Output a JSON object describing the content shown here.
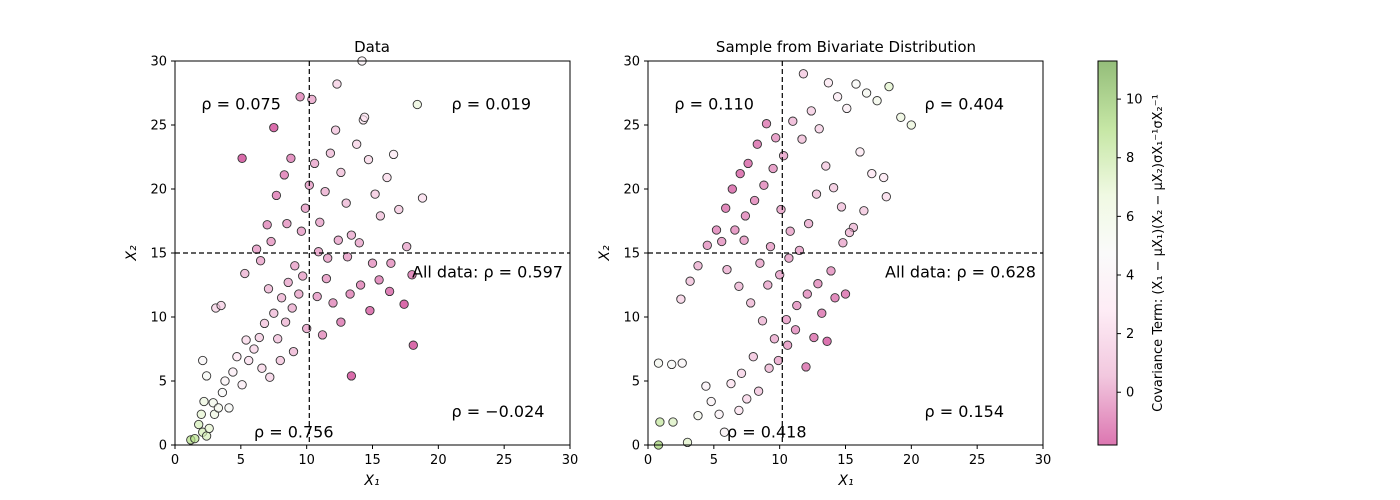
{
  "chart_data": [
    {
      "type": "scatter",
      "title": "Data",
      "xlabel": "X₁",
      "ylabel": "X₂",
      "xlim": [
        0,
        30
      ],
      "ylim": [
        0,
        30
      ],
      "xticks": [
        "0",
        "5",
        "10",
        "15",
        "20",
        "25",
        "30"
      ],
      "yticks": [
        "0",
        "5",
        "10",
        "15",
        "20",
        "25",
        "30"
      ],
      "grid": false,
      "mean_lines": {
        "x": 10.2,
        "y": 15.0
      },
      "annotations": [
        {
          "text": "ρ = 0.075",
          "x": 2.0,
          "y": 26.2
        },
        {
          "text": "ρ = 0.019",
          "x": 21.0,
          "y": 26.2
        },
        {
          "text": "All data: ρ = 0.597",
          "x": 18.0,
          "y": 13.1
        },
        {
          "text": "ρ = −0.024",
          "x": 21.0,
          "y": 2.2
        },
        {
          "text": "ρ = 0.756",
          "x": 6.0,
          "y": 0.6
        }
      ],
      "quadrant_correlations": {
        "upper_left": 0.075,
        "upper_right": 0.019,
        "lower_left": 0.756,
        "lower_right": -0.024,
        "all": 0.597
      },
      "series": [
        {
          "values": [
            [
              1.2,
              0.4
            ],
            [
              1.5,
              0.5
            ],
            [
              2.1,
              1.0
            ],
            [
              2.4,
              0.7
            ],
            [
              1.8,
              1.6
            ],
            [
              2.0,
              2.4
            ],
            [
              2.6,
              1.3
            ],
            [
              2.2,
              3.4
            ],
            [
              3.0,
              2.4
            ],
            [
              2.9,
              3.3
            ],
            [
              3.3,
              2.9
            ],
            [
              2.4,
              5.4
            ],
            [
              2.1,
              6.6
            ],
            [
              3.6,
              4.1
            ],
            [
              4.1,
              2.9
            ],
            [
              3.8,
              5.0
            ],
            [
              4.4,
              5.7
            ],
            [
              4.7,
              6.9
            ],
            [
              5.1,
              4.7
            ],
            [
              5.6,
              6.6
            ],
            [
              5.4,
              8.2
            ],
            [
              6.0,
              7.5
            ],
            [
              6.4,
              8.4
            ],
            [
              6.6,
              6.0
            ],
            [
              6.8,
              9.5
            ],
            [
              7.2,
              5.3
            ],
            [
              7.5,
              10.3
            ],
            [
              7.8,
              8.3
            ],
            [
              8.1,
              11.5
            ],
            [
              8.4,
              9.6
            ],
            [
              8.6,
              12.7
            ],
            [
              8.9,
              10.7
            ],
            [
              9.1,
              14.0
            ],
            [
              9.4,
              11.8
            ],
            [
              3.1,
              10.7
            ],
            [
              3.5,
              10.9
            ],
            [
              5.3,
              13.4
            ],
            [
              6.2,
              15.3
            ],
            [
              7.0,
              17.2
            ],
            [
              7.7,
              19.5
            ],
            [
              8.3,
              21.1
            ],
            [
              8.8,
              22.4
            ],
            [
              9.6,
              16.7
            ],
            [
              9.9,
              18.5
            ],
            [
              10.2,
              20.3
            ],
            [
              10.6,
              22.0
            ],
            [
              11.0,
              17.4
            ],
            [
              11.4,
              19.8
            ],
            [
              11.8,
              22.8
            ],
            [
              12.2,
              24.6
            ],
            [
              12.6,
              21.3
            ],
            [
              13.0,
              18.9
            ],
            [
              13.4,
              16.4
            ],
            [
              13.8,
              23.5
            ],
            [
              14.3,
              25.4
            ],
            [
              14.7,
              22.3
            ],
            [
              15.2,
              19.6
            ],
            [
              15.6,
              17.9
            ],
            [
              16.1,
              20.9
            ],
            [
              16.6,
              22.7
            ],
            [
              17.0,
              18.4
            ],
            [
              17.6,
              15.5
            ],
            [
              18.0,
              13.3
            ],
            [
              18.8,
              19.3
            ],
            [
              18.4,
              26.6
            ],
            [
              14.4,
              25.6
            ],
            [
              14.2,
              30.0
            ],
            [
              12.3,
              28.2
            ],
            [
              9.5,
              27.2
            ],
            [
              7.5,
              24.8
            ],
            [
              5.1,
              22.4
            ],
            [
              10.4,
              27.0
            ],
            [
              11.5,
              13.0
            ],
            [
              12.0,
              11.1
            ],
            [
              12.6,
              9.6
            ],
            [
              13.3,
              11.8
            ],
            [
              13.4,
              5.4
            ],
            [
              14.1,
              12.5
            ],
            [
              14.8,
              10.5
            ],
            [
              15.5,
              12.9
            ],
            [
              16.4,
              14.2
            ],
            [
              17.4,
              11.0
            ],
            [
              18.1,
              7.8
            ],
            [
              10.0,
              9.1
            ],
            [
              10.8,
              11.6
            ],
            [
              11.2,
              8.6
            ],
            [
              9.0,
              7.3
            ],
            [
              8.0,
              6.6
            ],
            [
              7.1,
              12.2
            ],
            [
              6.5,
              14.4
            ],
            [
              7.3,
              15.9
            ],
            [
              8.5,
              17.3
            ],
            [
              9.7,
              13.2
            ],
            [
              10.9,
              15.1
            ],
            [
              11.6,
              14.6
            ],
            [
              12.4,
              16.0
            ],
            [
              13.1,
              14.7
            ],
            [
              14.0,
              15.8
            ],
            [
              15.0,
              14.2
            ],
            [
              16.3,
              12.0
            ]
          ]
        }
      ]
    },
    {
      "type": "scatter",
      "title": "Sample from Bivariate Distribution",
      "xlabel": "X₁",
      "ylabel": "X₂",
      "xlim": [
        0,
        30
      ],
      "ylim": [
        0,
        30
      ],
      "xticks": [
        "0",
        "5",
        "10",
        "15",
        "20",
        "25",
        "30"
      ],
      "yticks": [
        "0",
        "5",
        "10",
        "15",
        "20",
        "25",
        "30"
      ],
      "grid": false,
      "mean_lines": {
        "x": 10.2,
        "y": 15.0
      },
      "annotations": [
        {
          "text": "ρ = 0.110",
          "x": 2.0,
          "y": 26.2
        },
        {
          "text": "ρ = 0.404",
          "x": 21.0,
          "y": 26.2
        },
        {
          "text": "All data: ρ = 0.628",
          "x": 18.0,
          "y": 13.1
        },
        {
          "text": "ρ = 0.154",
          "x": 21.0,
          "y": 2.2
        },
        {
          "text": "ρ = 0.418",
          "x": 6.0,
          "y": 0.6
        }
      ],
      "quadrant_correlations": {
        "upper_left": 0.11,
        "upper_right": 0.404,
        "lower_left": 0.418,
        "lower_right": 0.154,
        "all": 0.628
      },
      "series": [
        {
          "values": [
            [
              0.9,
              1.8
            ],
            [
              1.9,
              1.8
            ],
            [
              0.8,
              0.0
            ],
            [
              3.0,
              0.2
            ],
            [
              0.8,
              6.4
            ],
            [
              1.8,
              6.3
            ],
            [
              2.6,
              6.4
            ],
            [
              3.8,
              2.3
            ],
            [
              4.4,
              4.6
            ],
            [
              4.8,
              3.4
            ],
            [
              5.4,
              2.4
            ],
            [
              5.8,
              1.0
            ],
            [
              6.3,
              4.8
            ],
            [
              6.9,
              2.7
            ],
            [
              7.5,
              3.6
            ],
            [
              7.1,
              5.6
            ],
            [
              8.0,
              6.9
            ],
            [
              8.4,
              4.2
            ],
            [
              9.2,
              6.0
            ],
            [
              9.9,
              6.6
            ],
            [
              10.6,
              7.8
            ],
            [
              11.2,
              9.0
            ],
            [
              12.0,
              6.1
            ],
            [
              12.6,
              8.4
            ],
            [
              13.2,
              10.3
            ],
            [
              13.6,
              8.1
            ],
            [
              14.2,
              11.5
            ],
            [
              15.0,
              11.8
            ],
            [
              2.5,
              11.4
            ],
            [
              3.2,
              12.8
            ],
            [
              3.8,
              14.0
            ],
            [
              4.5,
              15.6
            ],
            [
              5.2,
              16.8
            ],
            [
              5.9,
              18.5
            ],
            [
              6.4,
              20.0
            ],
            [
              7.0,
              21.2
            ],
            [
              7.6,
              22.0
            ],
            [
              8.3,
              23.5
            ],
            [
              9.0,
              25.1
            ],
            [
              9.7,
              24.0
            ],
            [
              10.3,
              22.6
            ],
            [
              11.0,
              25.3
            ],
            [
              11.7,
              23.9
            ],
            [
              12.4,
              26.1
            ],
            [
              13.0,
              24.7
            ],
            [
              13.7,
              28.3
            ],
            [
              14.4,
              27.2
            ],
            [
              15.1,
              26.3
            ],
            [
              15.8,
              28.2
            ],
            [
              16.6,
              27.5
            ],
            [
              17.4,
              26.9
            ],
            [
              18.3,
              28.0
            ],
            [
              19.2,
              25.6
            ],
            [
              20.0,
              25.0
            ],
            [
              16.1,
              22.9
            ],
            [
              17.0,
              21.2
            ],
            [
              17.9,
              20.9
            ],
            [
              18.1,
              19.4
            ],
            [
              16.4,
              18.3
            ],
            [
              15.6,
              17.0
            ],
            [
              14.8,
              15.8
            ],
            [
              13.9,
              13.6
            ],
            [
              12.9,
              12.6
            ],
            [
              12.1,
              11.8
            ],
            [
              11.3,
              10.9
            ],
            [
              10.5,
              9.8
            ],
            [
              9.6,
              8.3
            ],
            [
              8.7,
              9.7
            ],
            [
              7.8,
              11.1
            ],
            [
              6.9,
              12.4
            ],
            [
              6.0,
              13.7
            ],
            [
              5.6,
              15.9
            ],
            [
              6.6,
              16.8
            ],
            [
              7.4,
              17.9
            ],
            [
              8.1,
              19.1
            ],
            [
              8.8,
              20.3
            ],
            [
              9.5,
              21.6
            ],
            [
              10.1,
              18.4
            ],
            [
              10.8,
              16.7
            ],
            [
              11.5,
              15.2
            ],
            [
              12.2,
              17.3
            ],
            [
              12.8,
              19.6
            ],
            [
              13.5,
              21.8
            ],
            [
              14.1,
              20.1
            ],
            [
              14.7,
              18.6
            ],
            [
              15.3,
              16.6
            ],
            [
              11.8,
              29.0
            ],
            [
              7.3,
              16.0
            ],
            [
              8.5,
              14.2
            ],
            [
              9.3,
              15.5
            ],
            [
              10.0,
              13.3
            ],
            [
              10.7,
              14.6
            ],
            [
              9.1,
              12.5
            ]
          ]
        }
      ]
    }
  ],
  "colorbar": {
    "label": "Covariance Term: (X₁ − μX₁)(X₂ − μX₂)σX₁⁻¹σX₂⁻¹",
    "ticks": [
      "0",
      "2",
      "4",
      "6",
      "8",
      "10"
    ],
    "range": [
      -1.8,
      11.3
    ],
    "colormap": "PiYG",
    "colors": {
      "low": "#c51b7d",
      "mid": "#f7f7f7",
      "high": "#4d9221"
    }
  }
}
